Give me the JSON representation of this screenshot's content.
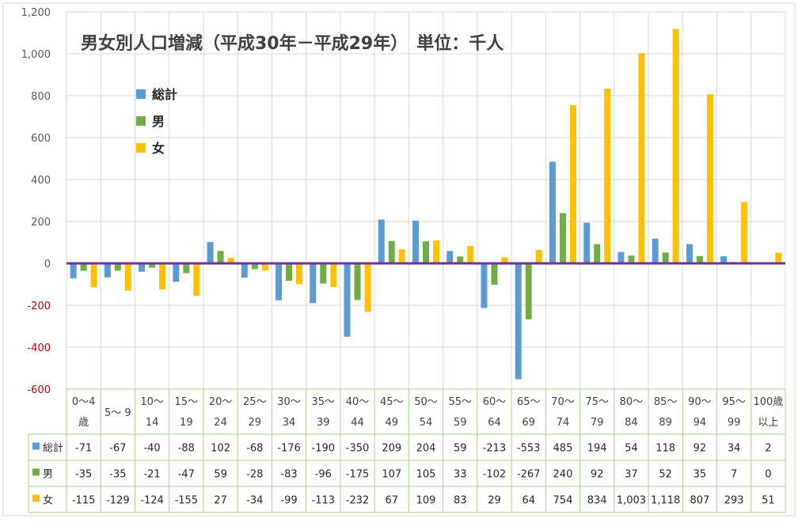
{
  "chart_data": {
    "type": "bar",
    "title": "男女別人口増減（平成30年－平成29年）　単位：千人",
    "categories": [
      [
        "0～4",
        "歳"
      ],
      [
        "5～ 9"
      ],
      [
        "10～",
        "14"
      ],
      [
        "15～",
        "19"
      ],
      [
        "20～",
        "24"
      ],
      [
        "25～",
        "29"
      ],
      [
        "30～",
        "34"
      ],
      [
        "35～",
        "39"
      ],
      [
        "40～",
        "44"
      ],
      [
        "45～",
        "49"
      ],
      [
        "50～",
        "54"
      ],
      [
        "55～",
        "59"
      ],
      [
        "60～",
        "64"
      ],
      [
        "65～",
        "69"
      ],
      [
        "70～",
        "74"
      ],
      [
        "75～",
        "79"
      ],
      [
        "80～",
        "84"
      ],
      [
        "85～",
        "89"
      ],
      [
        "90～",
        "94"
      ],
      [
        "95～",
        "99"
      ],
      [
        "100歳",
        "以上"
      ]
    ],
    "series": [
      {
        "name": "総計",
        "color": "#5b9bd5",
        "values": [
          -71,
          -67,
          -40,
          -88,
          102,
          -68,
          -176,
          -190,
          -350,
          209,
          204,
          59,
          -213,
          -553,
          485,
          194,
          54,
          118,
          92,
          34,
          2
        ],
        "labels": [
          "-71",
          "-67",
          "-40",
          "-88",
          "102",
          "-68",
          "-176",
          "-190",
          "-350",
          "209",
          "204",
          "59",
          "-213",
          "-553",
          "485",
          "194",
          "54",
          "118",
          "92",
          "34",
          "2"
        ]
      },
      {
        "name": "男",
        "color": "#70ad47",
        "values": [
          -35,
          -35,
          -21,
          -47,
          59,
          -28,
          -83,
          -96,
          -175,
          107,
          105,
          33,
          -102,
          -267,
          240,
          92,
          37,
          52,
          35,
          7,
          0
        ],
        "labels": [
          "-35",
          "-35",
          "-21",
          "-47",
          "59",
          "-28",
          "-83",
          "-96",
          "-175",
          "107",
          "105",
          "33",
          "-102",
          "-267",
          "240",
          "92",
          "37",
          "52",
          "35",
          "7",
          "0"
        ]
      },
      {
        "name": "女",
        "color": "#ffc000",
        "values": [
          -115,
          -129,
          -124,
          -155,
          27,
          -34,
          -99,
          -113,
          -232,
          67,
          109,
          83,
          29,
          64,
          754,
          834,
          1003,
          1118,
          807,
          293,
          51
        ],
        "labels": [
          "-115",
          "-129",
          "-124",
          "-155",
          "27",
          "-34",
          "-99",
          "-113",
          "-232",
          "67",
          "109",
          "83",
          "29",
          "64",
          "754",
          "834",
          "1,003",
          "1,118",
          "807",
          "293",
          "51"
        ]
      }
    ],
    "yticks": [
      {
        "value": 1200,
        "label": "1,200"
      },
      {
        "value": 1000,
        "label": "1,000"
      },
      {
        "value": 800,
        "label": "800"
      },
      {
        "value": 600,
        "label": "600"
      },
      {
        "value": 400,
        "label": "400"
      },
      {
        "value": 200,
        "label": "200"
      },
      {
        "value": 0,
        "label": "0"
      },
      {
        "value": -200,
        "label": "-200"
      },
      {
        "value": -400,
        "label": "-400"
      },
      {
        "value": -600,
        "label": "-600"
      }
    ],
    "ylim": [
      -600,
      1200
    ],
    "grid": true,
    "legend": "top-left",
    "zero_line_color": "#7030a0",
    "negative_tick_color": "#c00000"
  }
}
